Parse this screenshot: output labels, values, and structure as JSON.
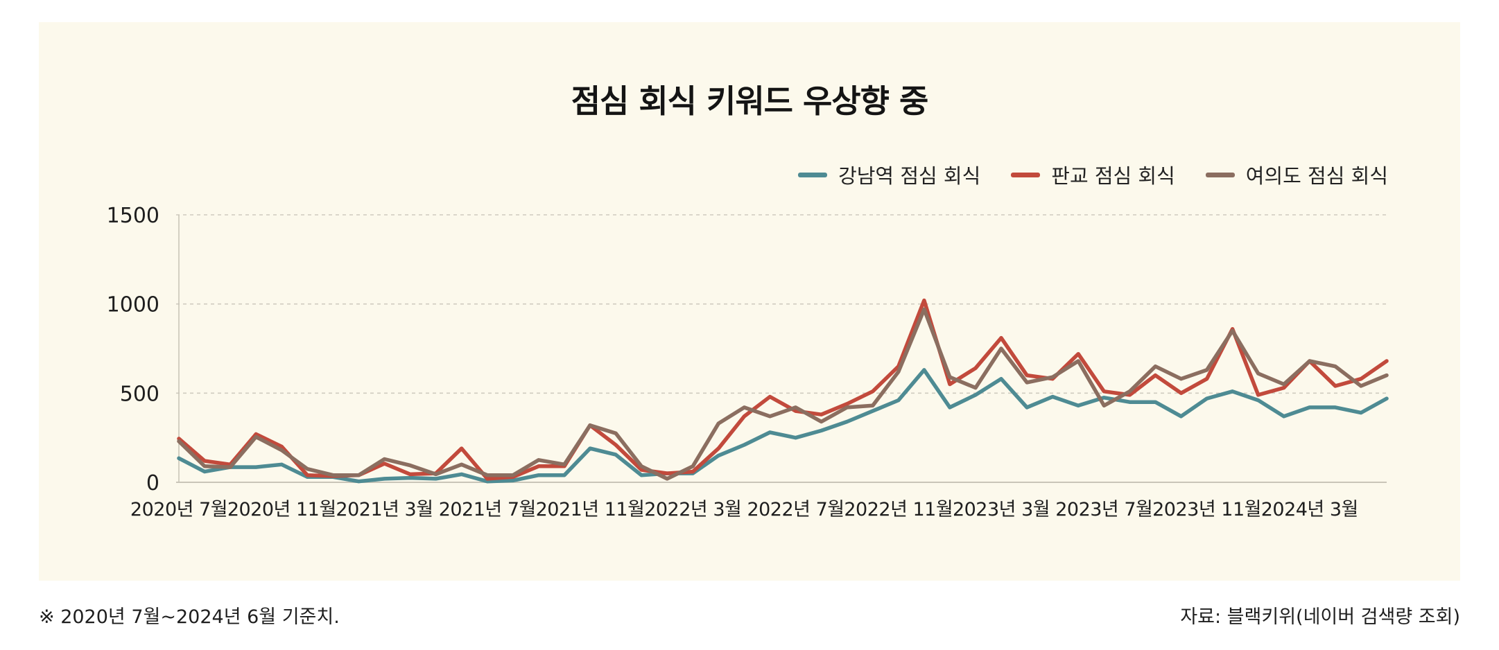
{
  "footnote": "※ 2020년 7월~2024년 6월 기준치.",
  "source": "자료: 블랙키위(네이버 검색량 조회)",
  "chart_data": {
    "type": "line",
    "title": "점심 회식 키워드 우상향 중",
    "xlabel": "",
    "ylabel": "",
    "ylim": [
      0,
      1500
    ],
    "yticks": [
      0,
      500,
      1000,
      1500
    ],
    "grid": true,
    "legend_position": "top-right",
    "x": [
      "2020-07",
      "2020-08",
      "2020-09",
      "2020-10",
      "2020-11",
      "2020-12",
      "2021-01",
      "2021-02",
      "2021-03",
      "2021-04",
      "2021-05",
      "2021-06",
      "2021-07",
      "2021-08",
      "2021-09",
      "2021-10",
      "2021-11",
      "2021-12",
      "2022-01",
      "2022-02",
      "2022-03",
      "2022-04",
      "2022-05",
      "2022-06",
      "2022-07",
      "2022-08",
      "2022-09",
      "2022-10",
      "2022-11",
      "2022-12",
      "2023-01",
      "2023-02",
      "2023-03",
      "2023-04",
      "2023-05",
      "2023-06",
      "2023-07",
      "2023-08",
      "2023-09",
      "2023-10",
      "2023-11",
      "2023-12",
      "2024-01",
      "2024-02",
      "2024-03",
      "2024-04",
      "2024-05",
      "2024-06"
    ],
    "xtick_labels": [
      {
        "index": 0,
        "label": "2020년 7월"
      },
      {
        "index": 4,
        "label": "2020년 11월"
      },
      {
        "index": 8,
        "label": "2021년 3월"
      },
      {
        "index": 12,
        "label": "2021년 7월"
      },
      {
        "index": 16,
        "label": "2021년 11월"
      },
      {
        "index": 20,
        "label": "2022년 3월"
      },
      {
        "index": 24,
        "label": "2022년 7월"
      },
      {
        "index": 28,
        "label": "2022년 11월"
      },
      {
        "index": 32,
        "label": "2023년 3월"
      },
      {
        "index": 36,
        "label": "2023년 7월"
      },
      {
        "index": 40,
        "label": "2023년 11월"
      },
      {
        "index": 44,
        "label": "2024년 3월"
      }
    ],
    "series": [
      {
        "name": "강남역 점심 회식",
        "color": "#4e8b93",
        "values": [
          135,
          60,
          85,
          85,
          100,
          30,
          30,
          5,
          20,
          25,
          20,
          45,
          5,
          10,
          40,
          40,
          190,
          155,
          40,
          50,
          50,
          150,
          210,
          280,
          250,
          290,
          340,
          400,
          460,
          630,
          420,
          490,
          580,
          420,
          480,
          430,
          475,
          450,
          450,
          370,
          470,
          510,
          460,
          370,
          420,
          420,
          390,
          470
        ]
      },
      {
        "name": "판교 점심 회식",
        "color": "#c24a3c",
        "values": [
          245,
          120,
          100,
          270,
          200,
          40,
          35,
          40,
          105,
          45,
          50,
          190,
          20,
          30,
          90,
          90,
          320,
          210,
          70,
          50,
          60,
          190,
          370,
          480,
          400,
          380,
          440,
          510,
          650,
          1020,
          550,
          640,
          810,
          600,
          580,
          720,
          510,
          490,
          600,
          500,
          580,
          860,
          490,
          530,
          680,
          540,
          580,
          680
        ]
      },
      {
        "name": "여의도 점심 회식",
        "color": "#8b6e60",
        "values": [
          230,
          90,
          85,
          255,
          180,
          75,
          40,
          40,
          130,
          95,
          45,
          100,
          40,
          40,
          125,
          100,
          320,
          275,
          90,
          20,
          90,
          330,
          420,
          370,
          420,
          340,
          420,
          430,
          620,
          970,
          590,
          530,
          750,
          560,
          590,
          680,
          430,
          510,
          650,
          580,
          630,
          850,
          610,
          550,
          680,
          650,
          540,
          600
        ]
      }
    ]
  }
}
